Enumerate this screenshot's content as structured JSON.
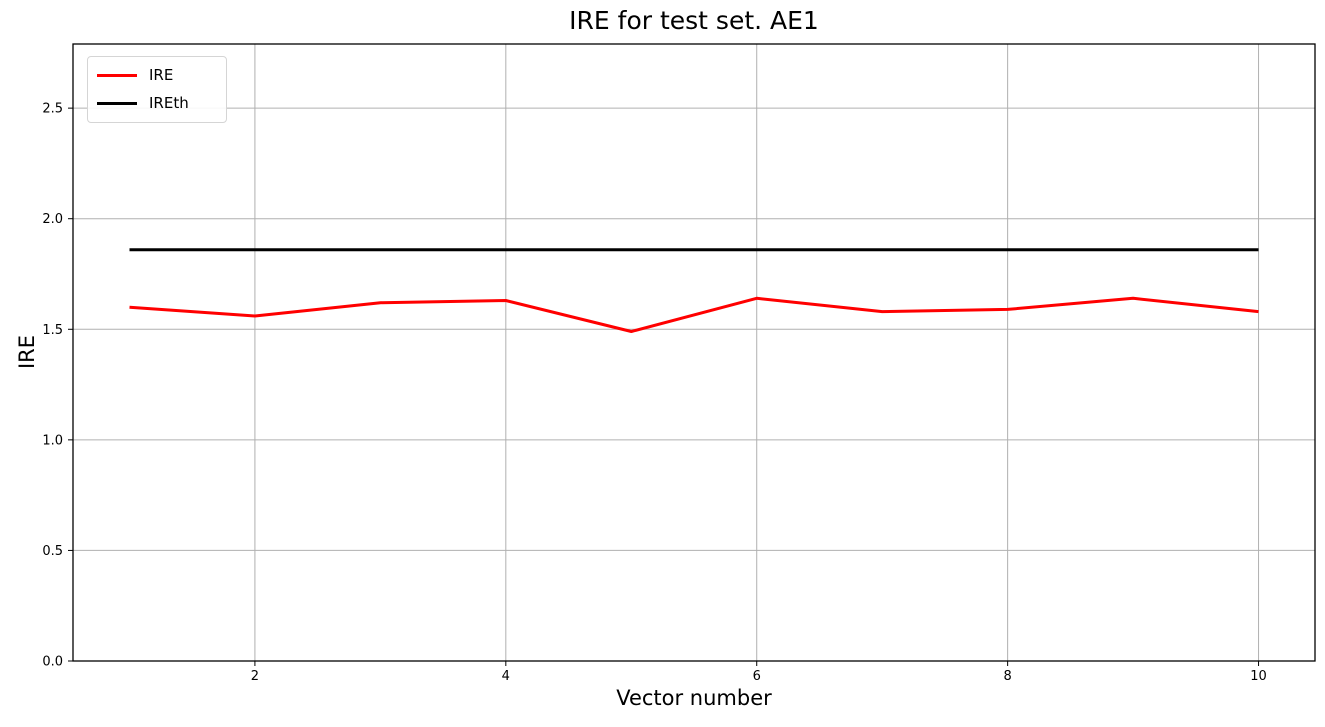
{
  "chart": {
    "title": "IRE for test set. AE1",
    "colors": {
      "background": "#ffffff",
      "grid": "#b0b0b0",
      "spine": "#000000",
      "tick_text": "#000000",
      "legend_border": "#d5d5d5",
      "ire_line": "#ff0000",
      "ireth_line": "#000000"
    },
    "legend": {
      "position": "upper left",
      "entries": [
        {
          "label": "IRE",
          "color": "#ff0000"
        },
        {
          "label": "IREth",
          "color": "#000000"
        }
      ]
    }
  },
  "chart_data": {
    "type": "line",
    "title": "IRE for test set. AE1",
    "xlabel": "Vector number",
    "ylabel": "IRE",
    "x": [
      1,
      2,
      3,
      4,
      5,
      6,
      7,
      8,
      9,
      10
    ],
    "series": [
      {
        "name": "IRE",
        "color": "#ff0000",
        "linewidth": 3,
        "values": [
          1.6,
          1.56,
          1.62,
          1.63,
          1.49,
          1.64,
          1.58,
          1.59,
          1.64,
          1.58
        ]
      },
      {
        "name": "IREth",
        "color": "#000000",
        "linewidth": 3,
        "values": [
          1.86,
          1.86,
          1.86,
          1.86,
          1.86,
          1.86,
          1.86,
          1.86,
          1.86,
          1.86
        ]
      }
    ],
    "xlim": [
      0.55,
      10.45
    ],
    "ylim": [
      0,
      2.79
    ],
    "xticks": [
      2,
      4,
      6,
      8,
      10
    ],
    "yticks": [
      0.0,
      0.5,
      1.0,
      1.5,
      2.0,
      2.5
    ],
    "grid": true,
    "legend_position": "upper left"
  }
}
